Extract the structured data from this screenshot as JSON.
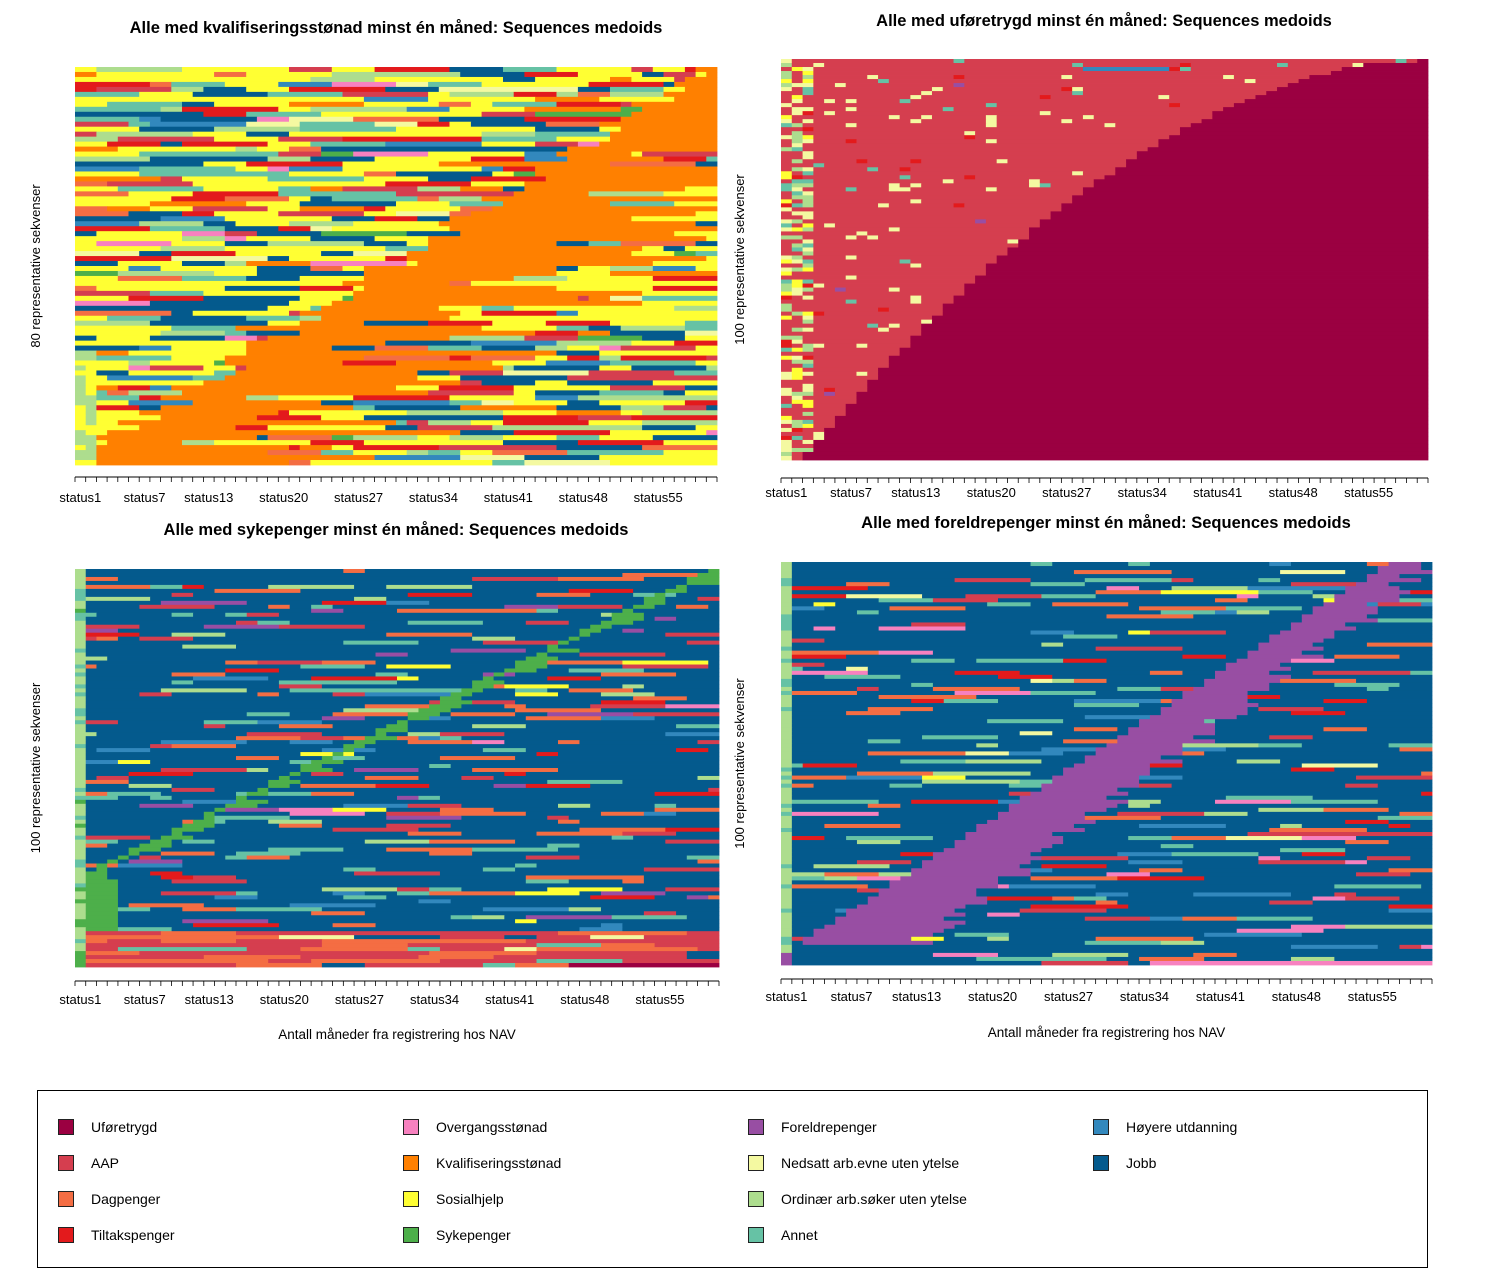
{
  "states": [
    {
      "name": "Uføretrygd",
      "color": "#9b0041"
    },
    {
      "name": "AAP",
      "color": "#d53e4f"
    },
    {
      "name": "Dagpenger",
      "color": "#f46d43"
    },
    {
      "name": "Tiltakspenger",
      "color": "#e31a1c"
    },
    {
      "name": "Overgangsstønad",
      "color": "#f781bf"
    },
    {
      "name": "Kvalifiseringsstønad",
      "color": "#ff8000"
    },
    {
      "name": "Sosialhjelp",
      "color": "#ffff33"
    },
    {
      "name": "Sykepenger",
      "color": "#4daf4a"
    },
    {
      "name": "Foreldrepenger",
      "color": "#984ea3"
    },
    {
      "name": "Nedsatt arb.evne uten ytelse",
      "color": "#f4f9a1"
    },
    {
      "name": "Ordinær arb.søker uten ytelse",
      "color": "#addd8e"
    },
    {
      "name": "Annet",
      "color": "#66c2a5"
    },
    {
      "name": "Høyere utdanning",
      "color": "#3288bd"
    },
    {
      "name": "Jobb",
      "color": "#045a8d"
    }
  ],
  "chart_data": [
    {
      "type": "heatmap",
      "title": "Alle med kvalifiseringsstønad minst én måned: Sequences medoids",
      "ylabel": "80 representative sekvenser",
      "xlabel": "",
      "n_sequences": 80,
      "n_months": 60,
      "tick_labels": [
        "status1",
        "status7",
        "status13",
        "status20",
        "status27",
        "status34",
        "status41",
        "status48",
        "status55"
      ],
      "tick_months": [
        1,
        7,
        13,
        20,
        27,
        34,
        41,
        48,
        55
      ],
      "focus_state": "Kvalifiseringsstønad",
      "pattern": "diagonal: sequences enter the focus state progressively later; earlier months mix Sosialhjelp and other states"
    },
    {
      "type": "heatmap",
      "title": "Alle med uføretrygd minst én måned: Sequences medoids",
      "ylabel": "100 representative sekvenser",
      "xlabel": "",
      "n_sequences": 100,
      "n_months": 60,
      "tick_labels": [
        "status1",
        "status7",
        "status13",
        "status20",
        "status27",
        "status34",
        "status41",
        "status48",
        "status55"
      ],
      "tick_months": [
        1,
        7,
        13,
        20,
        27,
        34,
        41,
        48,
        55
      ],
      "focus_state": "Uføretrygd",
      "pattern": "AAP dominates until a curved transition into Uføretrygd"
    },
    {
      "type": "heatmap",
      "title": "Alle med sykepenger minst én måned: Sequences medoids",
      "ylabel": "100 representative sekvenser",
      "xlabel": "Antall måneder fra registrering hos NAV",
      "n_sequences": 100,
      "n_months": 60,
      "tick_labels": [
        "status1",
        "status7",
        "status13",
        "status20",
        "status27",
        "status34",
        "status41",
        "status48",
        "status55"
      ],
      "tick_months": [
        1,
        7,
        13,
        20,
        27,
        34,
        41,
        48,
        55
      ],
      "focus_state": "Sykepenger",
      "pattern": "mostly Jobb with a thin diagonal of Sykepenger; AAP rows at the bottom"
    },
    {
      "type": "heatmap",
      "title": "Alle med foreldrepenger minst én måned: Sequences medoids",
      "ylabel": "100 representative sekvenser",
      "xlabel": "Antall måneder fra registrering hos NAV",
      "n_sequences": 100,
      "n_months": 60,
      "tick_labels": [
        "status1",
        "status7",
        "status13",
        "status20",
        "status27",
        "status34",
        "status41",
        "status48",
        "status55"
      ],
      "tick_months": [
        1,
        7,
        13,
        20,
        27,
        34,
        41,
        48,
        55
      ],
      "focus_state": "Foreldrepenger",
      "pattern": "mostly Jobb with a widening diagonal band of Foreldrepenger"
    }
  ]
}
